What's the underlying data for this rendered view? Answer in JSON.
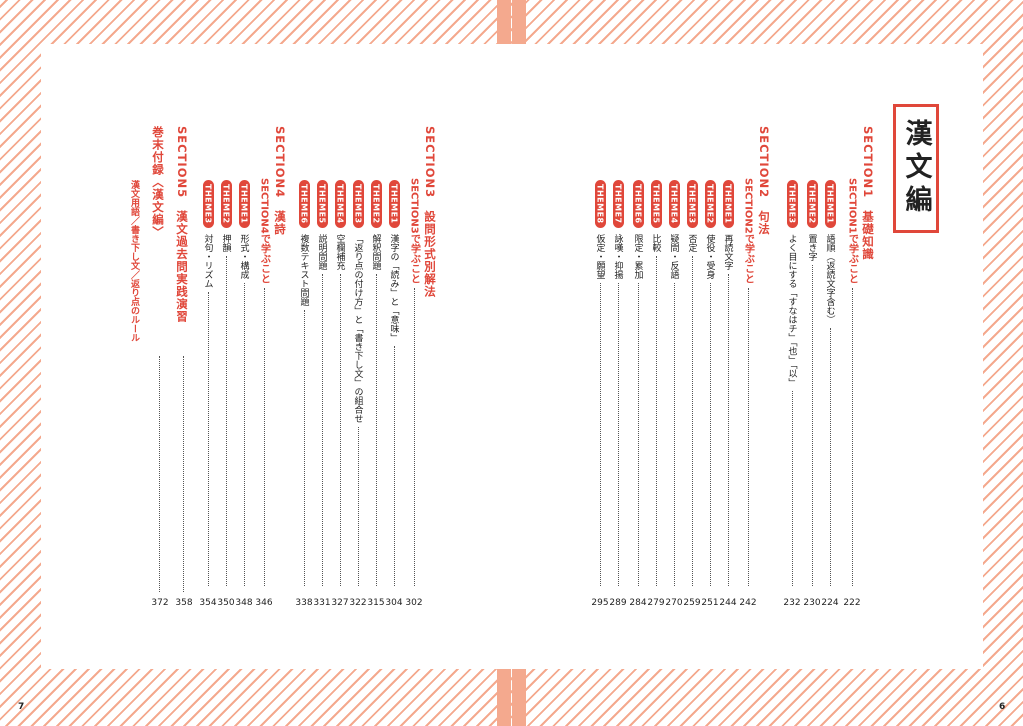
{
  "page_numbers": {
    "left": "7",
    "right": "6"
  },
  "title": "漢文編",
  "right_columns": [
    {
      "type": "section",
      "text": "SECTION1　基礎知識"
    },
    {
      "type": "sub",
      "text": "SECTION1で学ぶこと",
      "page": "222"
    },
    {
      "type": "item",
      "theme": "THEME1",
      "text": "語順（返読文字含む）",
      "page": "224"
    },
    {
      "type": "item",
      "theme": "THEME2",
      "text": "置き字",
      "page": "230"
    },
    {
      "type": "item",
      "theme": "THEME3",
      "text": "よく目にする「すなはチ」「也」「以」",
      "page": "232"
    },
    {
      "type": "section",
      "text": "SECTION2　句法"
    },
    {
      "type": "sub",
      "text": "SECTION2で学ぶこと",
      "page": "242"
    },
    {
      "type": "item",
      "theme": "THEME1",
      "text": "再読文字",
      "page": "244"
    },
    {
      "type": "item",
      "theme": "THEME2",
      "text": "使役・受身",
      "page": "251"
    },
    {
      "type": "item",
      "theme": "THEME3",
      "text": "否定",
      "page": "259"
    },
    {
      "type": "item",
      "theme": "THEME4",
      "text": "疑問・反語",
      "page": "270"
    },
    {
      "type": "item",
      "theme": "THEME5",
      "text": "比較",
      "page": "279"
    },
    {
      "type": "item",
      "theme": "THEME6",
      "text": "限定・累加",
      "page": "284"
    },
    {
      "type": "item",
      "theme": "THEME7",
      "text": "詠嘆・抑揚",
      "page": "289"
    },
    {
      "type": "item",
      "theme": "THEME8",
      "text": "仮定・願望",
      "page": "295"
    }
  ],
  "left_columns": [
    {
      "type": "section",
      "text": "SECTION3　設問形式別解法"
    },
    {
      "type": "sub",
      "text": "SECTION3で学ぶこと",
      "page": "302"
    },
    {
      "type": "item",
      "theme": "THEME1",
      "text": "漢字の「読み」と「意味」",
      "page": "304"
    },
    {
      "type": "item",
      "theme": "THEME2",
      "text": "解釈問題",
      "page": "315"
    },
    {
      "type": "item",
      "theme": "THEME3",
      "text": "「返り点の付け方」と「書き下し文」の組合せ",
      "page": "322"
    },
    {
      "type": "item",
      "theme": "THEME4",
      "text": "空欄補充",
      "page": "327"
    },
    {
      "type": "item",
      "theme": "THEME5",
      "text": "説明問題",
      "page": "331"
    },
    {
      "type": "item",
      "theme": "THEME6",
      "text": "複数テキスト問題",
      "page": "338"
    },
    {
      "type": "section",
      "text": "SECTION4　漢詩"
    },
    {
      "type": "sub",
      "text": "SECTION4で学ぶこと",
      "page": "346"
    },
    {
      "type": "item",
      "theme": "THEME1",
      "text": "形式・構成",
      "page": "348"
    },
    {
      "type": "item",
      "theme": "THEME2",
      "text": "押韻",
      "page": "350"
    },
    {
      "type": "item",
      "theme": "THEME3",
      "text": "対句・リズム",
      "page": "354"
    },
    {
      "type": "section",
      "text": "SECTION5　漢文過去問実践演習",
      "page": "358"
    },
    {
      "type": "section",
      "text": "巻末付録〈漢文編〉",
      "page": "372"
    },
    {
      "type": "glossary",
      "text": "漢文用語／書き下し文／返り点のルール"
    }
  ]
}
